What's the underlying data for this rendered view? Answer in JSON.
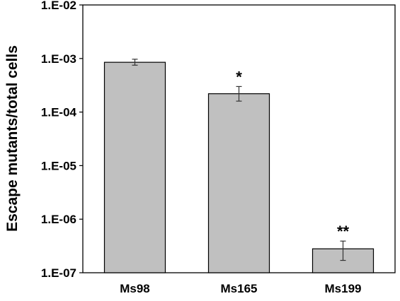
{
  "chart_data": {
    "type": "bar",
    "title": "",
    "xlabel": "",
    "ylabel": "Escape mutants/total cells",
    "y_scale": "log",
    "ylim": [
      1e-07,
      0.01
    ],
    "y_ticks": [
      "1.E-02",
      "1.E-03",
      "1.E-04",
      "1.E-05",
      "1.E-06",
      "1.E-07"
    ],
    "y_tick_values": [
      0.01,
      0.001,
      0.0001,
      1e-05,
      1e-06,
      1e-07
    ],
    "categories": [
      "Ms98",
      "Ms165",
      "Ms199"
    ],
    "values": [
      0.00085,
      0.00022,
      2.8e-07
    ],
    "error_low": [
      0.00075,
      0.00016,
      1.7e-07
    ],
    "error_high": [
      0.00097,
      0.0003,
      3.9e-07
    ],
    "annotations": [
      "",
      "*",
      "**"
    ],
    "bar_color": "#c0c0c0",
    "grid": false,
    "legend": "none"
  }
}
